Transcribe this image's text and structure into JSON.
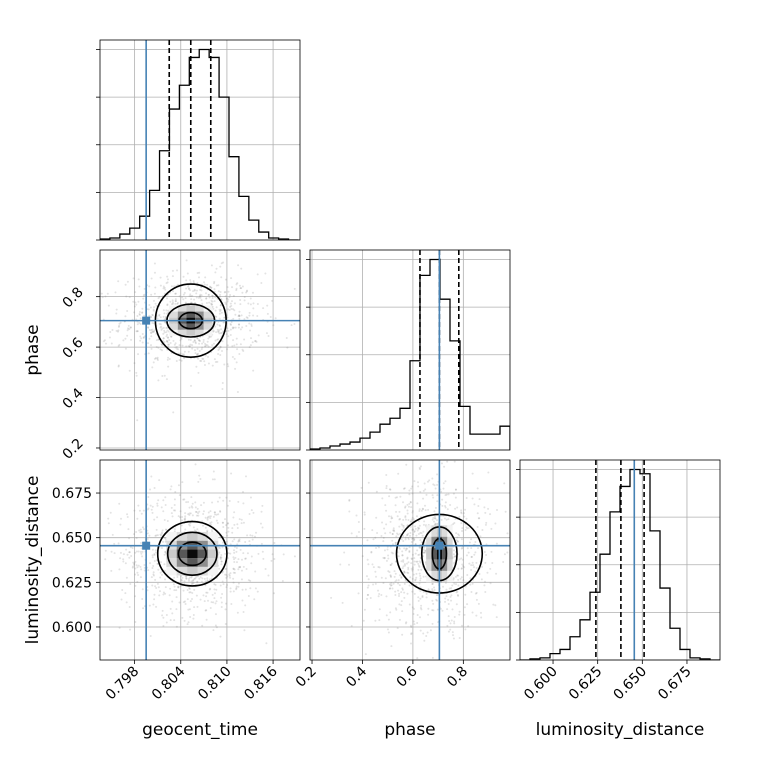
{
  "chart_data": {
    "type": "corner",
    "parameters": [
      "geocent_time",
      "phase",
      "luminosity_distance"
    ],
    "axis_labels": {
      "x": [
        "geocent_time",
        "phase",
        "luminosity_distance"
      ],
      "y": [
        "",
        "phase",
        "luminosity_distance"
      ]
    },
    "ranges": {
      "geocent_time": [
        0.7935,
        0.8195
      ],
      "phase": [
        0.192,
        0.985
      ],
      "luminosity_distance": [
        0.5815,
        0.6935
      ]
    },
    "tick_values": {
      "geocent_time": [
        0.798,
        0.804,
        0.81,
        0.816
      ],
      "phase": [
        0.2,
        0.4,
        0.6,
        0.8
      ],
      "luminosity_distance": [
        0.6,
        0.625,
        0.65,
        0.675
      ]
    },
    "tick_labels": {
      "geocent_time": [
        "0.798",
        "0.804",
        "0.810",
        "0.816"
      ],
      "phase": [
        "0.2",
        "0.4",
        "0.6",
        "0.8"
      ],
      "luminosity_distance": [
        "0.600",
        "0.625",
        "0.650",
        "0.675"
      ]
    },
    "truths": {
      "geocent_time": 0.7995,
      "phase": 0.705,
      "luminosity_distance": 0.6455
    },
    "quantiles": {
      "geocent_time": [
        0.8025,
        0.8053,
        0.8079
      ],
      "phase": [
        0.628,
        0.705,
        0.782
      ],
      "luminosity_distance": [
        0.624,
        0.638,
        0.651
      ]
    },
    "histograms": {
      "geocent_time": {
        "bins": [
          0.7935,
          0.79479,
          0.79608,
          0.79737,
          0.79866,
          0.79995,
          0.80124,
          0.80253,
          0.80382,
          0.80511,
          0.8064,
          0.80769,
          0.80898,
          0.81027,
          0.81156,
          0.81285,
          0.81414,
          0.81543,
          0.81672,
          0.81801,
          0.8193
        ],
        "counts": [
          0.5,
          1,
          3,
          6,
          12,
          25,
          45,
          66,
          78,
          92,
          96,
          92,
          72,
          42,
          22,
          10,
          4,
          1,
          0.5,
          0
        ]
      },
      "phase": {
        "bins": [
          0.192,
          0.23165,
          0.2713,
          0.31095,
          0.3506,
          0.39025,
          0.4299,
          0.46955,
          0.5092,
          0.54885,
          0.5885,
          0.62815,
          0.6678,
          0.70745,
          0.7471,
          0.78675,
          0.8264,
          0.86605,
          0.9057,
          0.94535,
          0.985
        ],
        "counts": [
          0.5,
          1,
          2,
          3,
          4,
          6,
          9,
          13,
          16,
          21,
          45,
          88,
          96,
          76,
          55,
          22,
          8,
          8,
          8,
          12
        ]
      },
      "luminosity_distance": {
        "bins": [
          0.5815,
          0.5871,
          0.5927,
          0.5983,
          0.6039,
          0.6095,
          0.6151,
          0.6207,
          0.6263,
          0.6319,
          0.6375,
          0.6431,
          0.6487,
          0.6543,
          0.6599,
          0.6655,
          0.6711,
          0.6767,
          0.6823,
          0.6879,
          0.6935
        ],
        "counts": [
          0,
          0.5,
          1,
          3,
          5,
          11,
          19,
          32,
          50,
          70,
          82,
          90,
          88,
          61,
          34,
          15,
          5,
          1,
          0.5,
          0
        ]
      }
    },
    "contours": {
      "geocent_time__phase": {
        "center": [
          0.8053,
          0.705
        ],
        "levels_sigma": [
          [
            0.0015,
            0.032
          ],
          [
            0.0031,
            0.065
          ],
          [
            0.0046,
            0.145
          ]
        ]
      },
      "geocent_time__luminosity_distance": {
        "center": [
          0.8055,
          0.641
        ],
        "levels_sigma": [
          [
            0.0018,
            0.0065
          ],
          [
            0.0032,
            0.012
          ],
          [
            0.0045,
            0.018
          ]
        ]
      },
      "phase__luminosity_distance": {
        "center": [
          0.705,
          0.641
        ],
        "levels_sigma": [
          [
            0.028,
            0.0085
          ],
          [
            0.07,
            0.015
          ],
          [
            0.17,
            0.022
          ]
        ]
      }
    },
    "colors": {
      "truth": "#4682b4",
      "hist": "#000000",
      "samples": "#808080"
    },
    "grid": true
  }
}
